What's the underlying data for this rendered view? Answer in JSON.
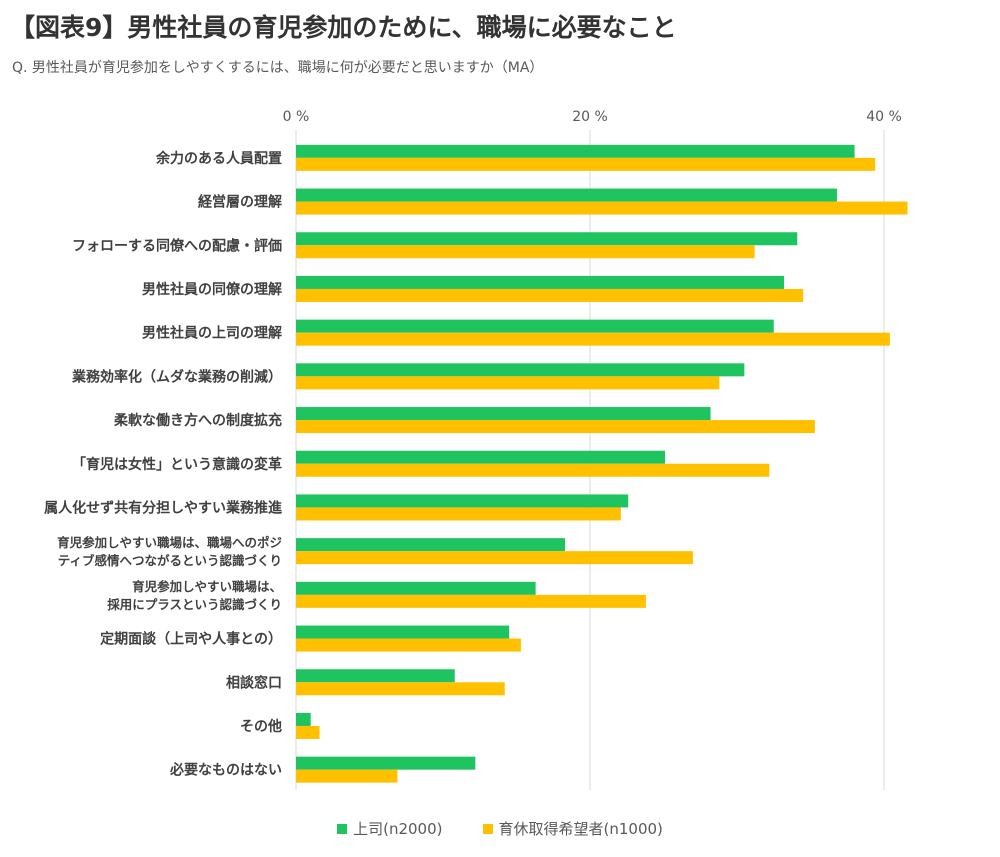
{
  "title": "【図表9】男性社員の育児参加のために、職場に必要なこと",
  "subtitle": "Q.  男性社員が育児参加をしやすくするには、職場に何が必要だと思いますか（MA）",
  "chart_data": {
    "type": "bar",
    "orientation": "horizontal",
    "categories": [
      [
        "余力のある人員配置"
      ],
      [
        "経営層の理解"
      ],
      [
        "フォローする同僚への配慮・評価"
      ],
      [
        "男性社員の同僚の理解"
      ],
      [
        "男性社員の上司の理解"
      ],
      [
        "業務効率化（ムダな業務の削減）"
      ],
      [
        "柔軟な働き方への制度拡充"
      ],
      [
        "「育児は女性」という意識の変革"
      ],
      [
        "属人化せず共有分担しやすい業務推進"
      ],
      [
        "育児参加しやすい職場は、職場へのポジ",
        "ティブ感情へつながるという認識づくり"
      ],
      [
        "育児参加しやすい職場は、",
        "採用にプラスという認識づくり"
      ],
      [
        "定期面談（上司や人事との）"
      ],
      [
        "相談窓口"
      ],
      [
        "その他"
      ],
      [
        "必要なものはない"
      ]
    ],
    "series": [
      {
        "name": "上司(n2000)",
        "color": "#1fc35f",
        "values": [
          38.0,
          36.8,
          34.1,
          33.2,
          32.5,
          30.5,
          28.2,
          25.1,
          22.6,
          18.3,
          16.3,
          14.5,
          10.8,
          1.0,
          12.2
        ]
      },
      {
        "name": "育休取得希望者(n1000)",
        "color": "#ffc000",
        "values": [
          39.4,
          41.6,
          31.2,
          34.5,
          40.4,
          28.8,
          35.3,
          32.2,
          22.1,
          27.0,
          23.8,
          15.3,
          14.2,
          1.6,
          6.9
        ]
      }
    ],
    "xlim": [
      0,
      45
    ],
    "xticks": [
      0,
      20,
      40
    ],
    "xtick_labels": [
      "0 %",
      "20 %",
      "40 %"
    ],
    "grid": true,
    "legend_position": "bottom"
  }
}
